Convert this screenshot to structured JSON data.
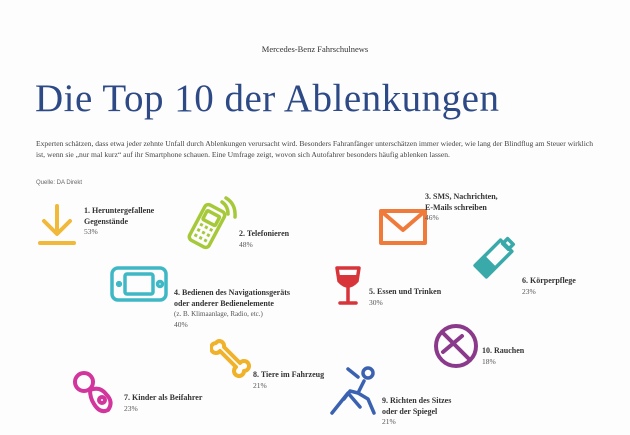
{
  "kicker": "Mercedes-Benz Fahrschulnews",
  "title": "Die Top 10 der Ablenkungen",
  "intro": "Experten schätzen, dass etwa jeder zehnte Unfall durch Ablenkungen verursacht wird. Besonders Fahranfänger unterschätzen immer wieder, wie lang der Blindflug am Steuer wirklich ist, wenn sie „nur mal kurz“ auf ihr Smartphone schauen. Eine Umfrage zeigt, wovon sich Autofahrer besonders häufig ablenken lassen.",
  "source": "Quelle: DA Direkt",
  "items": [
    {
      "label_1": "1. Heruntergefallene",
      "label_2": "Gegenstände",
      "pct": "53%",
      "icon": "arrow-down-icon",
      "color": "#f0b93a"
    },
    {
      "label_1": "2. Telefonieren",
      "pct": "48%",
      "icon": "mobile-phone-icon",
      "color": "#a6c93a"
    },
    {
      "label_1": "3. SMS, Nachrichten,",
      "label_2": "E-Mails schreiben",
      "pct": "46%",
      "icon": "envelope-icon",
      "color": "#f07a3a"
    },
    {
      "label_1": "4. Bedienen des Navigationsgeräts",
      "label_2": "oder anderer Bedienelemente",
      "sub": "(z. B. Klimaanlage, Radio, etc.)",
      "pct": "40%",
      "icon": "navigation-device-icon",
      "color": "#3fb8c6"
    },
    {
      "label_1": "5. Essen und Trinken",
      "pct": "30%",
      "icon": "wine-glass-icon",
      "color": "#d8353b"
    },
    {
      "label_1": "6. Körperpflege",
      "pct": "23%",
      "icon": "tube-icon",
      "color": "#3aa9a9"
    },
    {
      "label_1": "7. Kinder als Beifahrer",
      "pct": "23%",
      "icon": "pacifier-icon",
      "color": "#d2359b"
    },
    {
      "label_1": "8. Tiere im Fahrzeug",
      "pct": "21%",
      "icon": "bone-icon",
      "color": "#f0b22a"
    },
    {
      "label_1": "9. Richten des Sitzes",
      "label_2": "oder der Spiegel",
      "pct": "21%",
      "icon": "seat-adjust-icon",
      "color": "#3a62b0"
    },
    {
      "label_1": "10. Rauchen",
      "pct": "18%",
      "icon": "no-smoking-icon",
      "color": "#8b3a8b"
    }
  ]
}
